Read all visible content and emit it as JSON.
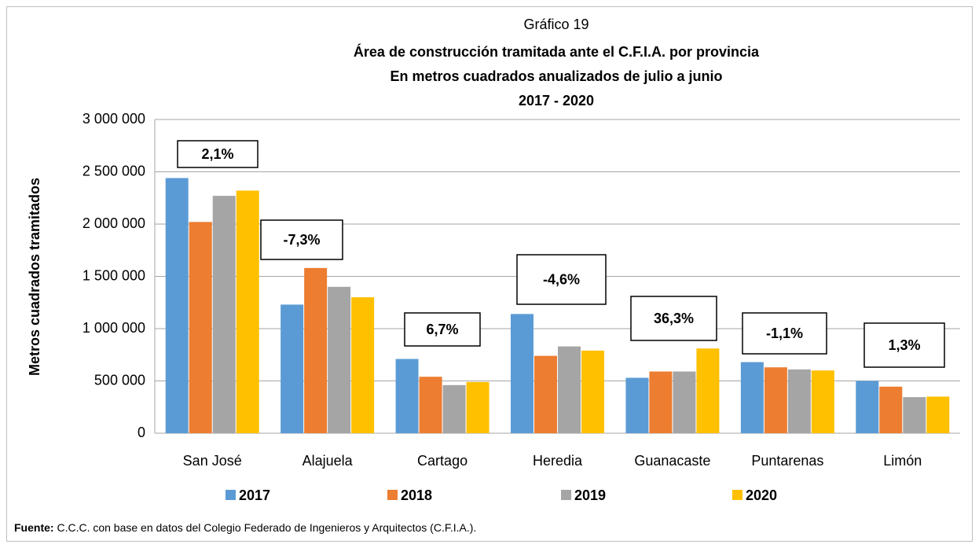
{
  "chart_data": {
    "type": "bar",
    "title": "Gráfico 19",
    "subtitle": [
      "Área de construcción tramitada ante el C.F.I.A. por provincia",
      "En metros cuadrados anualizados de julio a junio",
      "2017 - 2020"
    ],
    "y_label": "Metros cuadrados tramitados",
    "categories": [
      "San José",
      "Alajuela",
      "Cartago",
      "Heredia",
      "Guanacaste",
      "Puntarenas",
      "Limón"
    ],
    "series": [
      {
        "name": "2017",
        "color": "#5b9bd5",
        "values": [
          2440000,
          1230000,
          710000,
          1140000,
          530000,
          680000,
          500000
        ]
      },
      {
        "name": "2018",
        "color": "#ed7d31",
        "values": [
          2020000,
          1580000,
          540000,
          740000,
          590000,
          630000,
          445000
        ]
      },
      {
        "name": "2019",
        "color": "#a5a5a5",
        "values": [
          2270000,
          1400000,
          460000,
          830000,
          590000,
          610000,
          345000
        ]
      },
      {
        "name": "2020",
        "color": "#ffc000",
        "values": [
          2320000,
          1300000,
          490000,
          790000,
          810000,
          600000,
          350000
        ]
      }
    ],
    "annotations": [
      "2,1%",
      "-7,3%",
      "6,7%",
      "-4,6%",
      "36,3%",
      "-1,1%",
      "1,3%"
    ],
    "ylim": [
      0,
      3000000
    ],
    "yticks": [
      0,
      {
        "value": 500000,
        "label": "500 000"
      },
      {
        "value": 1000000,
        "label": "1 000 000"
      },
      {
        "value": 1500000,
        "label": "1 500 000"
      },
      {
        "value": 2000000,
        "label": "2 000 000"
      },
      {
        "value": 2500000,
        "label": "2 500 000"
      },
      {
        "value": 3000000,
        "label": "3 000 000"
      }
    ],
    "grid": true,
    "legend": "bottom",
    "source_label": "Fuente:",
    "source": " C.C.C. con base en datos del Colegio Federado de Ingenieros y Arquitectos (C.F.I.A.)."
  }
}
